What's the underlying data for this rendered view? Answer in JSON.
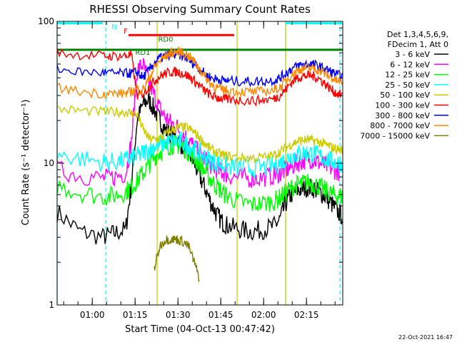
{
  "chart_data": {
    "type": "line",
    "title": "RHESSI Observing Summary Count Rates",
    "xlabel": "Start Time (04-Oct-13 00:47:42)",
    "ylabel": "Count Rate (s⁻¹ detector⁻¹)",
    "y_scale": "log",
    "ylim": [
      1,
      100
    ],
    "y_ticks": [
      {
        "value": 1,
        "label": "1"
      },
      {
        "value": 10,
        "label": "10"
      },
      {
        "value": 100,
        "label": "100"
      }
    ],
    "x_unit": "minutes since 00:47:42",
    "xlim": [
      0,
      100
    ],
    "x_ticks": [
      {
        "value": 12.3,
        "label": "01:00"
      },
      {
        "value": 27.3,
        "label": "01:15"
      },
      {
        "value": 42.3,
        "label": "01:30"
      },
      {
        "value": 57.3,
        "label": "01:45"
      },
      {
        "value": 72.3,
        "label": "02:00"
      },
      {
        "value": 87.3,
        "label": "02:15"
      }
    ],
    "legend_header": [
      "Det 1,3,4,5,6,9,",
      "FDecim 1, Att 0"
    ],
    "legend_position": "right",
    "x": [
      0,
      8,
      16,
      20,
      24,
      26,
      28,
      30,
      32,
      34,
      36,
      38,
      40,
      42,
      44,
      46,
      48,
      50,
      52,
      54,
      56,
      58,
      60,
      64,
      68,
      72,
      76,
      78,
      80,
      82,
      84,
      86,
      88,
      90,
      92,
      94,
      96,
      98,
      100
    ],
    "series": [
      {
        "name": "3 - 6 keV",
        "color": "#000000",
        "values": [
          4.5,
          3.3,
          3.0,
          3.2,
          3.4,
          7,
          20,
          26,
          28,
          24,
          20,
          17,
          16,
          15,
          13,
          12,
          10,
          8,
          6.5,
          5.2,
          4.3,
          3.8,
          3.6,
          3.4,
          3.3,
          3.4,
          3.6,
          4.0,
          5.2,
          6.0,
          6.4,
          6.6,
          6.8,
          6.6,
          6.2,
          5.8,
          5.2,
          4.6,
          4.2
        ]
      },
      {
        "name": "6 - 12 keV",
        "color": "#ff00ff",
        "values": [
          9.0,
          8.2,
          7.8,
          8.0,
          8.5,
          14,
          45,
          50,
          38,
          30,
          24,
          21,
          19,
          18,
          16,
          14.5,
          13,
          11.5,
          10.5,
          9.6,
          9.0,
          8.6,
          8.2,
          7.9,
          7.8,
          7.9,
          8.2,
          8.5,
          8.9,
          9.4,
          10.0,
          10.4,
          10.8,
          10.5,
          10.0,
          9.6,
          9.2,
          8.8,
          8.6
        ]
      },
      {
        "name": "12 - 25 keV",
        "color": "#00ff00",
        "values": [
          7.0,
          6.2,
          5.8,
          5.9,
          6.3,
          6.8,
          7.5,
          8.5,
          9.6,
          11,
          12,
          13,
          13.5,
          13.5,
          13,
          12,
          11,
          9.8,
          8.6,
          7.6,
          6.8,
          6.2,
          5.8,
          5.3,
          5.1,
          5.2,
          5.4,
          5.7,
          6.2,
          6.7,
          7.0,
          7.2,
          7.3,
          7.1,
          6.8,
          6.4,
          6.1,
          5.9,
          5.8
        ]
      },
      {
        "name": "25 - 50 keV",
        "color": "#00ffff",
        "values": [
          11.5,
          10.8,
          10.2,
          10.2,
          10.5,
          10.8,
          11.2,
          11.8,
          12.4,
          13,
          13.6,
          14,
          14.2,
          14.2,
          14,
          13.4,
          12.6,
          11.8,
          11.0,
          10.4,
          10.0,
          9.7,
          9.5,
          9.3,
          9.2,
          9.3,
          9.6,
          10.0,
          10.6,
          11.2,
          11.6,
          11.8,
          11.8,
          11.6,
          11.2,
          10.8,
          10.4,
          10.1,
          10.0
        ]
      },
      {
        "name": "50 - 100 keV",
        "color": "#cccc00",
        "values": [
          24,
          23.5,
          23,
          23,
          23,
          22.5,
          22,
          17.5,
          15,
          14.6,
          15,
          16,
          17,
          17.8,
          18,
          17.6,
          16.5,
          15,
          13.5,
          12.5,
          11.8,
          11.4,
          11.2,
          11.0,
          10.9,
          11.0,
          11.4,
          12.0,
          12.8,
          13.6,
          14.2,
          14.5,
          14.6,
          14.4,
          14.0,
          13.5,
          13.0,
          12.6,
          12.4
        ]
      },
      {
        "name": "100 - 300 keV",
        "color": "#ff0000",
        "values": [
          60,
          58,
          57,
          57,
          57,
          58,
          30,
          31,
          34,
          38,
          41,
          43,
          44,
          44,
          43,
          41,
          38,
          35,
          32,
          30,
          29,
          28.5,
          28,
          27.8,
          27.6,
          27.8,
          28.5,
          30,
          33,
          37,
          40,
          41,
          41.5,
          41,
          39,
          36,
          33,
          31,
          30
        ]
      },
      {
        "name": "300 - 800 keV",
        "color": "#0000ff",
        "values": [
          46,
          44,
          43.5,
          43,
          43,
          43,
          44,
          40,
          45,
          51,
          55,
          57,
          58,
          58,
          57,
          54,
          50,
          46,
          42,
          40,
          39,
          38.5,
          38,
          37.8,
          37.6,
          37.8,
          38.5,
          40,
          43,
          46,
          48.5,
          49.5,
          50,
          49.5,
          48,
          46,
          44,
          42,
          41
        ]
      },
      {
        "name": "800 - 7000 keV",
        "color": "#ff8800",
        "values": [
          34,
          32,
          31,
          31,
          31,
          32,
          33,
          33,
          39,
          47,
          53,
          57,
          60,
          61,
          60,
          57,
          52,
          46,
          40,
          36,
          34,
          33,
          32.5,
          32,
          31.8,
          32,
          32.8,
          34,
          38,
          42,
          45,
          46.5,
          47,
          46.5,
          45,
          42.5,
          40,
          38,
          37
        ]
      },
      {
        "name": "7000 - 15000 keV",
        "color": "#808000",
        "values": [
          null,
          null,
          null,
          null,
          null,
          null,
          null,
          null,
          null,
          1.8,
          2.6,
          2.9,
          2.9,
          2.9,
          2.8,
          2.6,
          2.0,
          1.5,
          null,
          null,
          null,
          null,
          null,
          null,
          null,
          null,
          null,
          null,
          null,
          null,
          null,
          null,
          null,
          null,
          null,
          null,
          null,
          null,
          null
        ]
      }
    ],
    "flag_bars": [
      {
        "label": "N",
        "color": "#00ffff",
        "start": 0,
        "end": 16,
        "level": 97
      },
      {
        "label": "N",
        "color": "#00ffff",
        "start": 80,
        "end": 100,
        "level": 97
      },
      {
        "label": "F",
        "color": "#ff0000",
        "start": 25,
        "end": 62,
        "level": 80
      },
      {
        "label": "",
        "color": "#008000",
        "start": 0,
        "end": 100,
        "level": 63
      },
      {
        "label": "RD1",
        "color": "#008000",
        "start": 0,
        "end": 0,
        "level": 63
      },
      {
        "label": "RD0",
        "color": "#008000",
        "start": 0,
        "end": 0,
        "level": 67
      }
    ],
    "flag_labels": [
      {
        "text": "N",
        "color": "#00ffff",
        "x": 20,
        "value": 88
      },
      {
        "text": "F",
        "color": "#ff0000",
        "x": 24,
        "value": 82
      },
      {
        "text": "RD1",
        "color": "#008000",
        "x": 30,
        "value": 58
      },
      {
        "text": "RD0",
        "color": "#008000",
        "x": 38,
        "value": 72
      }
    ],
    "vertical_markers": [
      {
        "x": 0,
        "color": "#00ffff",
        "style": "solid"
      },
      {
        "x": 17,
        "color": "#00ffff",
        "style": "dashed"
      },
      {
        "x": 80,
        "color": "#00ffff",
        "style": "solid"
      },
      {
        "x": 99,
        "color": "#00ffff",
        "style": "dashed"
      },
      {
        "x": 35,
        "color": "#cccc00",
        "style": "solid"
      },
      {
        "x": 63,
        "color": "#cccc00",
        "style": "solid"
      },
      {
        "x": 80,
        "color": "#cccc00",
        "style": "solid"
      }
    ],
    "grid": false
  },
  "footer": {
    "timestamp": "22-Oct-2021 16:47"
  }
}
